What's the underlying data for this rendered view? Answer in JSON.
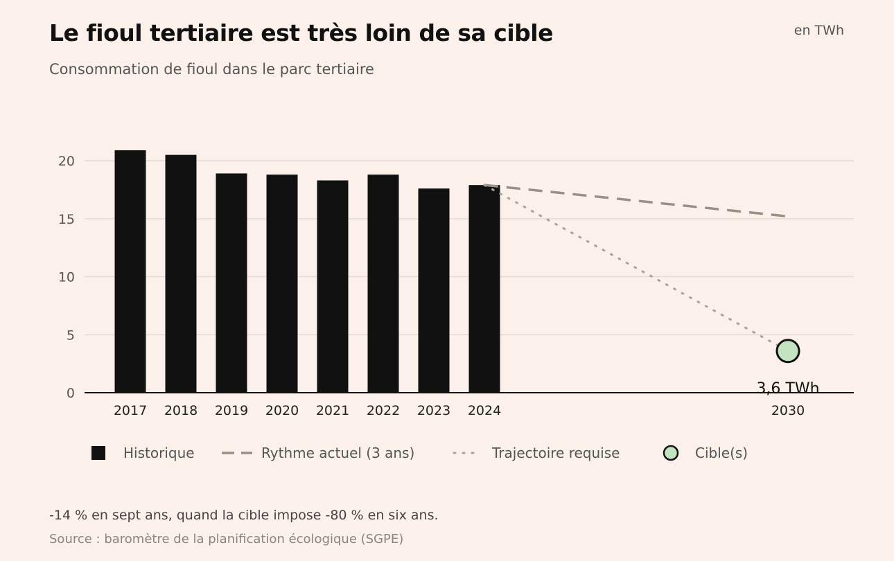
{
  "header": {
    "title": "Le fioul tertiaire est très loin de sa cible",
    "subtitle": "Consommation de fioul dans le parc tertiaire",
    "unit": "en TWh"
  },
  "footer": {
    "note": "-14 % en sept ans, quand la cible impose -80 % en six ans.",
    "source": "Source : baromètre de la planification écologique (SGPE)"
  },
  "colors": {
    "background": "#fbf1ea",
    "bar": "#111111",
    "trend": "#999088",
    "required": "#aaa29a",
    "target_fill": "#c4e3c0",
    "grid": "#e6dad2"
  },
  "chart_data": {
    "type": "bar",
    "title": "Le fioul tertiaire est très loin de sa cible",
    "subtitle": "Consommation de fioul dans le parc tertiaire",
    "unit": "en TWh",
    "ylim": [
      0,
      21.5
    ],
    "yticks": [
      0,
      5,
      10,
      15,
      20
    ],
    "grid": true,
    "legend_position": "bottom",
    "categories": [
      "2017",
      "2018",
      "2019",
      "2020",
      "2021",
      "2022",
      "2023",
      "2024"
    ],
    "series": [
      {
        "name": "Historique",
        "type": "bar",
        "x": [
          "2017",
          "2018",
          "2019",
          "2020",
          "2021",
          "2022",
          "2023",
          "2024"
        ],
        "values": [
          20.9,
          20.5,
          18.9,
          18.8,
          18.3,
          18.8,
          17.6,
          17.9
        ]
      },
      {
        "name": "Rythme actuel (3 ans)",
        "type": "line",
        "style": "dashed",
        "x": [
          "2024",
          "2030"
        ],
        "values": [
          17.9,
          15.2
        ]
      },
      {
        "name": "Trajectoire requise",
        "type": "line",
        "style": "dotted",
        "x": [
          "2024",
          "2030"
        ],
        "values": [
          17.9,
          3.6
        ]
      },
      {
        "name": "Cible(s)",
        "type": "scatter",
        "x": [
          "2030"
        ],
        "values": [
          3.6
        ]
      }
    ],
    "annotations": [
      {
        "x": "2030",
        "y": 3.6,
        "text": "3,6 TWh"
      }
    ]
  }
}
